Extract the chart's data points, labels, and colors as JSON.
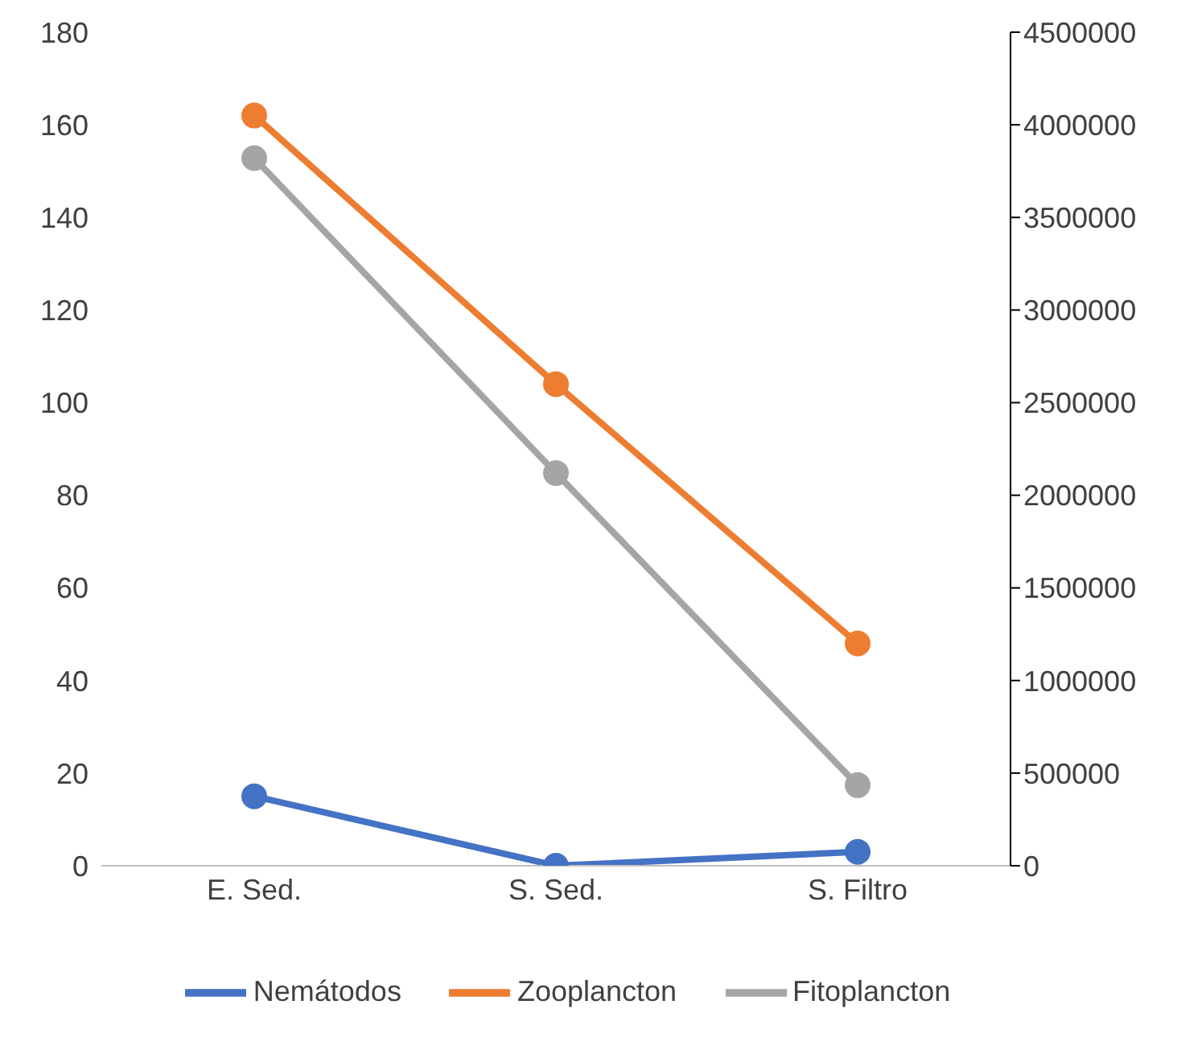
{
  "chart_data": {
    "type": "line",
    "categories": [
      "E. Sed.",
      "S. Sed.",
      "S. Filtro"
    ],
    "series": [
      {
        "name": "Nemátodos",
        "color": "#4472c4",
        "values": [
          15,
          0,
          3
        ]
      },
      {
        "name": "Zooplancton",
        "color": "#ed7d31",
        "values": [
          162,
          104,
          48
        ]
      },
      {
        "name": "Fitoplancton",
        "color": "#a5a5a5",
        "values": [
          3820000,
          2120000,
          435000
        ],
        "axis": "y2"
      }
    ],
    "ylim": [
      0,
      180
    ],
    "yticks": [
      0,
      20,
      40,
      60,
      80,
      100,
      120,
      140,
      160,
      180
    ],
    "y2lim": [
      0,
      4500000
    ],
    "y2ticks": [
      0,
      500000,
      1000000,
      1500000,
      2000000,
      2500000,
      3000000,
      3500000,
      4000000,
      4500000
    ],
    "grid": false,
    "legend": "bottom",
    "marker": "circle",
    "line_style": "solid"
  }
}
